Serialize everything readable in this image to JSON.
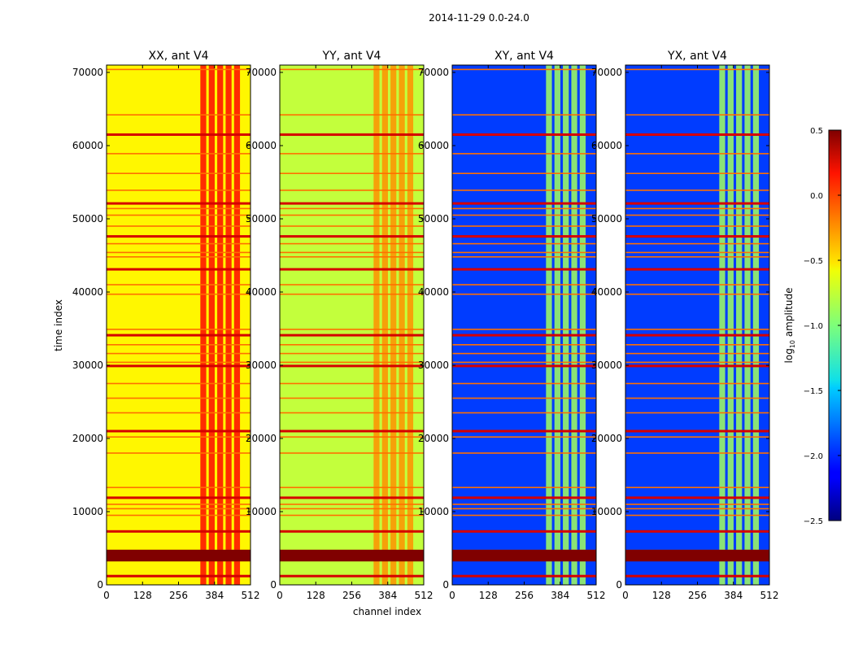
{
  "chart_data": {
    "type": "heatmap",
    "suptitle": "2014-11-29 0.0-24.0",
    "xlabel": "channel index",
    "ylabel": "time index",
    "xlim": [
      0,
      512
    ],
    "ylim": [
      0,
      71000
    ],
    "x_ticks": [
      0,
      128,
      256,
      384,
      512
    ],
    "y_ticks": [
      0,
      10000,
      20000,
      30000,
      40000,
      50000,
      60000,
      70000
    ],
    "x_tick_labels": [
      "0",
      "128",
      "256",
      "384",
      "512"
    ],
    "y_tick_labels": [
      "0",
      "10000",
      "20000",
      "30000",
      "40000",
      "50000",
      "60000",
      "70000"
    ],
    "colormap": "jet",
    "colorbar": {
      "label_prefix": "log",
      "label_sub": "10",
      "label_suffix": " amplitude",
      "vmin": -2.5,
      "vmax": 0.5,
      "ticks": [
        0.5,
        0.0,
        -0.5,
        -1.0,
        -1.5,
        -2.0,
        -2.5
      ],
      "tick_labels": [
        "0.5",
        "0.0",
        "−0.5",
        "−1.0",
        "−1.5",
        "−2.0",
        "−2.5"
      ]
    },
    "panels": [
      {
        "title": "XX, ant V4",
        "base_level": -0.6,
        "band_level": 0.1
      },
      {
        "title": "YY, ant V4",
        "base_level": -0.8,
        "band_level": -0.3
      },
      {
        "title": "XY, ant V4",
        "base_level": -1.95,
        "band_level": -0.9
      },
      {
        "title": "YX, ant V4",
        "base_level": -1.95,
        "band_level": -0.9
      }
    ],
    "rfi_channel_range": [
      330,
      480
    ],
    "flagged_time_rows": [
      1200,
      3600,
      4200,
      4700,
      7300,
      9500,
      10400,
      11000,
      11900,
      13300,
      18000,
      20200,
      21000,
      23500,
      25500,
      27500,
      29900,
      30400,
      31600,
      32800,
      34100,
      34900,
      39700,
      41000,
      43100,
      44800,
      45400,
      46600,
      47600,
      49000,
      50500,
      51400,
      52100,
      53900,
      56200,
      58900,
      61500,
      64200,
      70400
    ]
  }
}
